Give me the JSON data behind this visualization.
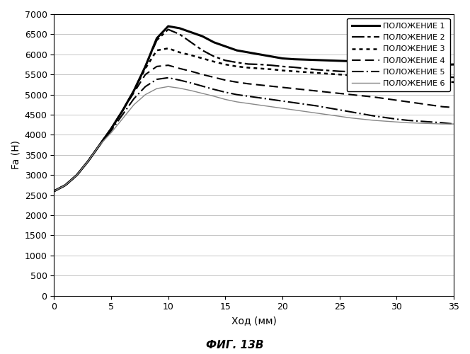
{
  "title": "ФИГ. 13В",
  "xlabel": "Ход (мм)",
  "ylabel": "Fa (H)",
  "xlim": [
    0,
    35
  ],
  "ylim": [
    0,
    7000
  ],
  "yticks": [
    0,
    500,
    1000,
    1500,
    2000,
    2500,
    3000,
    3500,
    4000,
    4500,
    5000,
    5500,
    6000,
    6500,
    7000
  ],
  "xticks": [
    0,
    5,
    10,
    15,
    20,
    25,
    30,
    35
  ],
  "background_color": "#ffffff",
  "series": [
    {
      "label": "ПОЛОЖЕНИЕ 1",
      "linestyle_key": "solid_thick",
      "x": [
        0,
        1,
        2,
        3,
        4,
        5,
        6,
        7,
        8,
        9,
        10,
        11,
        12,
        13,
        14,
        15,
        16,
        17,
        18,
        19,
        20,
        21,
        22,
        23,
        24,
        25,
        26,
        27,
        28,
        29,
        30,
        31,
        32,
        33,
        34,
        35
      ],
      "y": [
        2600,
        2750,
        3000,
        3350,
        3750,
        4150,
        4600,
        5100,
        5700,
        6400,
        6700,
        6650,
        6550,
        6450,
        6300,
        6200,
        6100,
        6050,
        6000,
        5950,
        5900,
        5880,
        5870,
        5860,
        5850,
        5840,
        5830,
        5820,
        5810,
        5800,
        5790,
        5780,
        5770,
        5760,
        5740,
        5750
      ]
    },
    {
      "label": "ПОЛОЖЕНИЕ 2",
      "linestyle_key": "dash_dot_dot",
      "x": [
        0,
        1,
        2,
        3,
        4,
        5,
        6,
        7,
        8,
        9,
        10,
        11,
        12,
        13,
        14,
        15,
        16,
        17,
        18,
        19,
        20,
        21,
        22,
        23,
        24,
        25,
        26,
        27,
        28,
        29,
        30,
        31,
        32,
        33,
        34,
        35
      ],
      "y": [
        2600,
        2750,
        3000,
        3350,
        3750,
        4150,
        4600,
        5100,
        5700,
        6350,
        6620,
        6500,
        6300,
        6100,
        5950,
        5850,
        5800,
        5760,
        5750,
        5730,
        5700,
        5680,
        5650,
        5620,
        5600,
        5580,
        5570,
        5560,
        5540,
        5530,
        5510,
        5490,
        5480,
        5460,
        5440,
        5430
      ]
    },
    {
      "label": "ПОЛОЖЕНИЕ 3",
      "linestyle_key": "dotted",
      "x": [
        0,
        1,
        2,
        3,
        4,
        5,
        6,
        7,
        8,
        9,
        10,
        11,
        12,
        13,
        14,
        15,
        16,
        17,
        18,
        19,
        20,
        21,
        22,
        23,
        24,
        25,
        26,
        27,
        28,
        29,
        30,
        31,
        32,
        33,
        34,
        35
      ],
      "y": [
        2600,
        2750,
        3000,
        3350,
        3750,
        4150,
        4600,
        5100,
        5650,
        6100,
        6150,
        6050,
        5980,
        5900,
        5820,
        5750,
        5700,
        5670,
        5650,
        5630,
        5600,
        5580,
        5560,
        5540,
        5520,
        5500,
        5480,
        5470,
        5450,
        5430,
        5410,
        5390,
        5370,
        5350,
        5330,
        5310
      ]
    },
    {
      "label": "ПОЛОЖЕНИЕ 4",
      "linestyle_key": "dashed",
      "x": [
        0,
        1,
        2,
        3,
        4,
        5,
        6,
        7,
        8,
        9,
        10,
        11,
        12,
        13,
        14,
        15,
        16,
        17,
        18,
        19,
        20,
        21,
        22,
        23,
        24,
        25,
        26,
        27,
        28,
        29,
        30,
        31,
        32,
        33,
        34,
        35
      ],
      "y": [
        2600,
        2750,
        3000,
        3350,
        3750,
        4150,
        4600,
        5050,
        5500,
        5700,
        5730,
        5650,
        5580,
        5500,
        5430,
        5360,
        5310,
        5270,
        5240,
        5210,
        5180,
        5150,
        5120,
        5090,
        5060,
        5030,
        5000,
        4970,
        4940,
        4900,
        4860,
        4820,
        4780,
        4740,
        4700,
        4680
      ]
    },
    {
      "label": "ПОЛОЖЕНИЕ 5",
      "linestyle_key": "dashdot",
      "x": [
        0,
        1,
        2,
        3,
        4,
        5,
        6,
        7,
        8,
        9,
        10,
        11,
        12,
        13,
        14,
        15,
        16,
        17,
        18,
        19,
        20,
        21,
        22,
        23,
        24,
        25,
        26,
        27,
        28,
        29,
        30,
        31,
        32,
        33,
        34,
        35
      ],
      "y": [
        2600,
        2750,
        3000,
        3350,
        3750,
        4100,
        4500,
        4900,
        5200,
        5380,
        5420,
        5360,
        5290,
        5210,
        5130,
        5060,
        5000,
        4960,
        4920,
        4880,
        4840,
        4800,
        4760,
        4720,
        4670,
        4620,
        4570,
        4520,
        4470,
        4430,
        4390,
        4360,
        4340,
        4320,
        4300,
        4270
      ]
    },
    {
      "label": "ПОЛОЖЕНИЕ 6",
      "linestyle_key": "solid_thin",
      "x": [
        0,
        1,
        2,
        3,
        4,
        5,
        6,
        7,
        8,
        9,
        10,
        11,
        12,
        13,
        14,
        15,
        16,
        17,
        18,
        19,
        20,
        21,
        22,
        23,
        24,
        25,
        26,
        27,
        28,
        29,
        30,
        31,
        32,
        33,
        34,
        35
      ],
      "y": [
        2600,
        2750,
        3000,
        3350,
        3750,
        4050,
        4400,
        4750,
        5000,
        5150,
        5200,
        5160,
        5100,
        5030,
        4960,
        4880,
        4820,
        4780,
        4740,
        4700,
        4660,
        4620,
        4580,
        4540,
        4500,
        4460,
        4420,
        4390,
        4360,
        4340,
        4320,
        4300,
        4290,
        4280,
        4270,
        4270
      ]
    }
  ]
}
